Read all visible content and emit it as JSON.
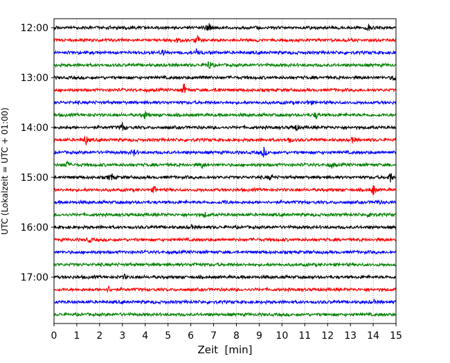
{
  "chart_data": {
    "type": "line",
    "title": "",
    "xlabel": "Zeit  [min]",
    "ylabel": "UTC (Lokalzeit = UTC + 01:00)",
    "xlim": [
      0,
      15
    ],
    "x_ticks": [
      "0",
      "1",
      "2",
      "3",
      "4",
      "5",
      "6",
      "7",
      "8",
      "9",
      "10",
      "11",
      "12",
      "13",
      "14",
      "15"
    ],
    "y_tick_labels": [
      "12:00",
      "13:00",
      "14:00",
      "15:00",
      "16:00",
      "17:00"
    ],
    "grid": "vertical dotted lines at each minute",
    "legend": "none",
    "trace_interval_minutes": 15,
    "color_cycle": [
      "#000000",
      "#ff0000",
      "#0000ff",
      "#008000"
    ],
    "series": [
      {
        "start": "12:00",
        "color": "#000000",
        "events": [
          [
            6.8,
            1.0
          ],
          [
            13.8,
            0.5
          ]
        ]
      },
      {
        "start": "12:15",
        "color": "#ff0000",
        "events": [
          [
            5.4,
            0.35
          ],
          [
            6.3,
            0.9
          ]
        ]
      },
      {
        "start": "12:30",
        "color": "#0000ff",
        "events": [
          [
            4.8,
            0.4
          ],
          [
            6.25,
            0.7
          ]
        ]
      },
      {
        "start": "12:45",
        "color": "#008000",
        "events": [
          [
            6.8,
            0.8
          ]
        ]
      },
      {
        "start": "13:00",
        "color": "#000000",
        "events": [
          [
            6.6,
            0.6
          ],
          [
            14.95,
            0.7
          ]
        ]
      },
      {
        "start": "13:15",
        "color": "#ff0000",
        "events": [
          [
            5.7,
            1.0
          ],
          [
            7.2,
            0.3
          ]
        ]
      },
      {
        "start": "13:30",
        "color": "#0000ff",
        "events": [
          [
            11.2,
            0.5
          ]
        ]
      },
      {
        "start": "13:45",
        "color": "#008000",
        "events": [
          [
            4.0,
            0.7
          ],
          [
            11.5,
            0.6
          ]
        ]
      },
      {
        "start": "14:00",
        "color": "#000000",
        "events": [
          [
            3.0,
            0.8
          ],
          [
            10.6,
            0.6
          ]
        ]
      },
      {
        "start": "14:15",
        "color": "#ff0000",
        "events": [
          [
            1.4,
            0.8
          ],
          [
            10.3,
            0.6
          ],
          [
            13.1,
            0.5
          ]
        ]
      },
      {
        "start": "14:30",
        "color": "#0000ff",
        "events": [
          [
            3.5,
            0.5
          ],
          [
            9.2,
            0.8
          ]
        ]
      },
      {
        "start": "14:45",
        "color": "#008000",
        "events": [
          [
            0.55,
            0.6
          ],
          [
            6.5,
            0.5
          ],
          [
            12.2,
            0.5
          ]
        ]
      },
      {
        "start": "15:00",
        "color": "#000000",
        "events": [
          [
            2.5,
            0.8
          ],
          [
            9.5,
            0.4
          ],
          [
            14.75,
            0.9
          ]
        ]
      },
      {
        "start": "15:15",
        "color": "#ff0000",
        "events": [
          [
            4.4,
            0.5
          ],
          [
            14.0,
            1.0
          ]
        ]
      },
      {
        "start": "15:30",
        "color": "#0000ff",
        "events": [
          [
            7.5,
            0.3
          ],
          [
            14.2,
            0.3
          ]
        ]
      },
      {
        "start": "15:45",
        "color": "#008000",
        "events": [
          [
            6.6,
            0.4
          ],
          [
            13.9,
            0.7
          ]
        ]
      },
      {
        "start": "16:00",
        "color": "#000000",
        "events": [
          [
            6.0,
            0.4
          ]
        ]
      },
      {
        "start": "16:15",
        "color": "#ff0000",
        "events": [
          [
            1.55,
            0.4
          ]
        ]
      },
      {
        "start": "16:30",
        "color": "#0000ff",
        "events": []
      },
      {
        "start": "16:45",
        "color": "#008000",
        "events": [
          [
            6.2,
            0.3
          ]
        ]
      },
      {
        "start": "17:00",
        "color": "#000000",
        "events": [
          [
            3.1,
            0.3
          ]
        ]
      },
      {
        "start": "17:15",
        "color": "#ff0000",
        "events": [
          [
            2.4,
            0.45
          ]
        ]
      },
      {
        "start": "17:30",
        "color": "#0000ff",
        "events": [
          [
            14.0,
            0.3
          ]
        ]
      },
      {
        "start": "17:45",
        "color": "#008000",
        "events": []
      }
    ]
  }
}
